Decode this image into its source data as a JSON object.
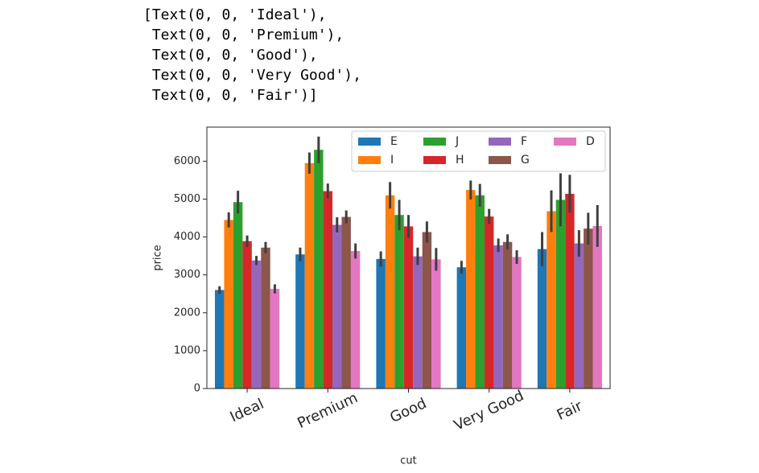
{
  "output_lines": [
    "[Text(0, 0, 'Ideal'),",
    " Text(0, 0, 'Premium'),",
    " Text(0, 0, 'Good'),",
    " Text(0, 0, 'Very Good'),",
    " Text(0, 0, 'Fair')]"
  ],
  "chart_data": {
    "type": "bar",
    "x_label": "cut",
    "y_label": "price",
    "categories": [
      "Ideal",
      "Premium",
      "Good",
      "Very Good",
      "Fair"
    ],
    "series": [
      {
        "name": "E",
        "color": "#1f77b4",
        "values": [
          2600,
          3540,
          3420,
          3200,
          3680
        ],
        "errors": [
          100,
          180,
          200,
          170,
          450
        ]
      },
      {
        "name": "I",
        "color": "#ff7f0e",
        "values": [
          4450,
          5950,
          5100,
          5240,
          4680
        ],
        "errors": [
          200,
          280,
          350,
          250,
          550
        ]
      },
      {
        "name": "J",
        "color": "#2ca02c",
        "values": [
          4920,
          6300,
          4580,
          5100,
          4980
        ],
        "errors": [
          300,
          350,
          400,
          300,
          700
        ]
      },
      {
        "name": "H",
        "color": "#d62728",
        "values": [
          3890,
          5210,
          4280,
          4540,
          5140
        ],
        "errors": [
          150,
          200,
          300,
          200,
          500
        ]
      },
      {
        "name": "F",
        "color": "#9467bd",
        "values": [
          3380,
          4320,
          3490,
          3780,
          3830
        ],
        "errors": [
          120,
          200,
          230,
          180,
          350
        ]
      },
      {
        "name": "G",
        "color": "#8c564b",
        "values": [
          3720,
          4530,
          4130,
          3870,
          4220
        ],
        "errors": [
          150,
          170,
          280,
          200,
          420
        ]
      },
      {
        "name": "D",
        "color": "#e377c2",
        "values": [
          2630,
          3630,
          3410,
          3470,
          4290
        ],
        "errors": [
          120,
          200,
          300,
          180,
          550
        ]
      }
    ],
    "ylim": [
      0,
      6900
    ],
    "yticks": [
      0,
      1000,
      2000,
      3000,
      4000,
      5000,
      6000
    ],
    "legend": "upper right",
    "legend_columns": 4,
    "error_color": "#3f3f3f"
  }
}
